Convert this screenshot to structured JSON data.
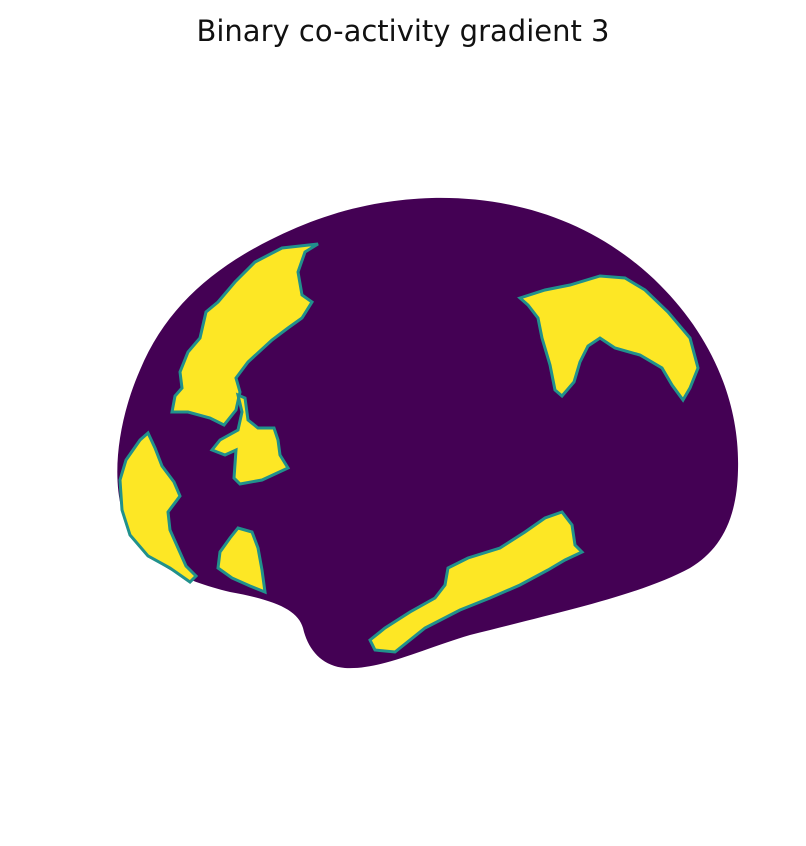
{
  "title": "Binary co-activity gradient 3",
  "colors": {
    "background": "#ffffff",
    "low": "#440154",
    "high": "#fde725",
    "edge": "#21918c"
  },
  "figure": {
    "view": "lateral brain surface",
    "colormap": "viridis",
    "regions": [
      {
        "id": "frontal-upper",
        "value": 1
      },
      {
        "id": "frontal-mid",
        "value": 1
      },
      {
        "id": "frontal-pole",
        "value": 1
      },
      {
        "id": "orbitofrontal",
        "value": 1
      },
      {
        "id": "parietal",
        "value": 1
      },
      {
        "id": "temporal",
        "value": 1
      }
    ]
  }
}
